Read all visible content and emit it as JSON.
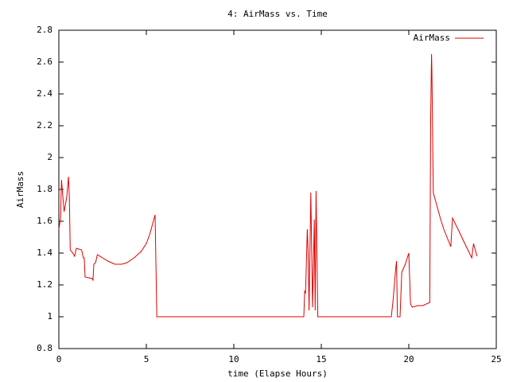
{
  "chart_data": {
    "type": "line",
    "title": "4: AirMass vs. Time",
    "x_label": "time (Elapse Hours)",
    "y_label": "AirMass",
    "xlim": [
      0,
      25
    ],
    "xticks": [
      0,
      5,
      10,
      15,
      20,
      25
    ],
    "ylim": [
      0.8,
      2.8
    ],
    "yticks": [
      0.8,
      1,
      1.2,
      1.4,
      1.6,
      1.8,
      2,
      2.2,
      2.4,
      2.6,
      2.8
    ],
    "legend": "top-right",
    "x": [
      0,
      0.1,
      0.15,
      0.3,
      0.45,
      0.55,
      0.6,
      0.65,
      0.8,
      0.9,
      1.0,
      1.3,
      1.4,
      1.45,
      1.5,
      1.9,
      1.95,
      2.0,
      2.1,
      2.2,
      2.5,
      2.8,
      3.2,
      3.6,
      3.9,
      4.3,
      4.7,
      5.0,
      5.2,
      5.4,
      5.5,
      5.6,
      14.0,
      14.05,
      14.1,
      14.2,
      14.25,
      14.3,
      14.4,
      14.5,
      14.6,
      14.65,
      14.7,
      14.8,
      19.0,
      19.1,
      19.25,
      19.3,
      19.35,
      19.5,
      19.6,
      19.8,
      20.0,
      20.1,
      20.2,
      20.5,
      20.8,
      21.2,
      21.25,
      21.3,
      21.32,
      21.4,
      21.8,
      22.0,
      22.4,
      22.5,
      22.9,
      23.2,
      23.6,
      23.7,
      23.9
    ],
    "series": [
      {
        "name": "AirMass",
        "color": "#e00000",
        "values": [
          1.55,
          1.62,
          1.86,
          1.66,
          1.75,
          1.88,
          1.75,
          1.42,
          1.4,
          1.38,
          1.43,
          1.42,
          1.37,
          1.37,
          1.25,
          1.24,
          1.23,
          1.33,
          1.34,
          1.39,
          1.37,
          1.35,
          1.33,
          1.33,
          1.34,
          1.37,
          1.41,
          1.46,
          1.52,
          1.6,
          1.64,
          1.0,
          1.0,
          1.16,
          1.15,
          1.55,
          1.4,
          1.04,
          1.78,
          1.06,
          1.61,
          1.04,
          1.79,
          1.0,
          1.0,
          1.1,
          1.3,
          1.35,
          1.0,
          1.0,
          1.28,
          1.33,
          1.4,
          1.08,
          1.06,
          1.07,
          1.07,
          1.09,
          2.25,
          2.65,
          2.55,
          1.78,
          1.62,
          1.55,
          1.44,
          1.62,
          1.53,
          1.46,
          1.37,
          1.46,
          1.38
        ]
      }
    ]
  }
}
